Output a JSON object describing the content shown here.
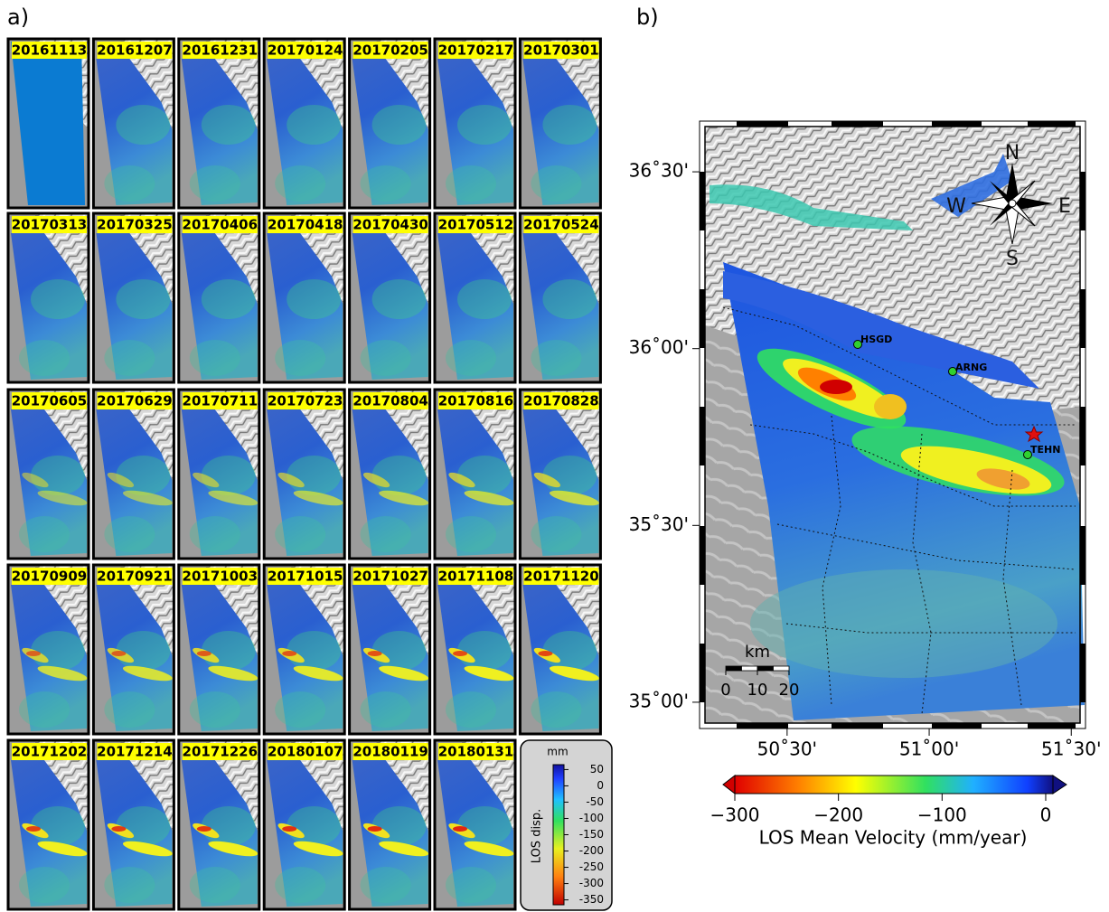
{
  "panel_a": {
    "label": "a)",
    "dates": [
      "20161113",
      "20161207",
      "20161231",
      "20170124",
      "20170205",
      "20170217",
      "20170301",
      "20170313",
      "20170325",
      "20170406",
      "20170418",
      "20170430",
      "20170512",
      "20170524",
      "20170605",
      "20170629",
      "20170711",
      "20170723",
      "20170804",
      "20170816",
      "20170828",
      "20170909",
      "20170921",
      "20171003",
      "20171015",
      "20171027",
      "20171108",
      "20171120",
      "20171202",
      "20171214",
      "20171226",
      "20180107",
      "20180119",
      "20180131"
    ],
    "legend": {
      "unit": "mm",
      "title": "LOS disp.",
      "lim": [
        65,
        -365
      ],
      "ticks": [
        50,
        0,
        -50,
        -100,
        -150,
        -200,
        -250,
        -300,
        -350
      ]
    }
  },
  "panel_b": {
    "label": "b)",
    "lat_lim": [
      34.941,
      36.628
    ],
    "lat_ticks": [
      {
        "value": 36.5,
        "label": "36˚30'"
      },
      {
        "value": 36,
        "label": "36˚00'"
      },
      {
        "value": 35.5,
        "label": "35˚30'"
      },
      {
        "value": 35,
        "label": "35˚00'"
      }
    ],
    "lon_lim": [
      50.211,
      51.531
    ],
    "lon_ticks": [
      {
        "value": 50.5,
        "label": "50˚30'"
      },
      {
        "value": 51,
        "label": "51˚00'"
      },
      {
        "value": 51.5,
        "label": "51˚30'"
      }
    ],
    "compass": {
      "n": "N",
      "w": "W",
      "e": "E",
      "s": "S"
    },
    "stations": [
      "HSGD",
      "ARNG",
      "TEHN"
    ],
    "scale": {
      "unit": "km",
      "ticks": [
        0,
        10,
        20
      ]
    },
    "colorbar": {
      "lim": [
        -300,
        7
      ],
      "ticks": [
        {
          "value": -300,
          "label": "−300"
        },
        {
          "value": -200,
          "label": "−200"
        },
        {
          "value": -100,
          "label": "−100"
        },
        {
          "value": 0,
          "label": "0"
        }
      ],
      "label": "LOS Mean Velocity (mm/year)"
    }
  }
}
